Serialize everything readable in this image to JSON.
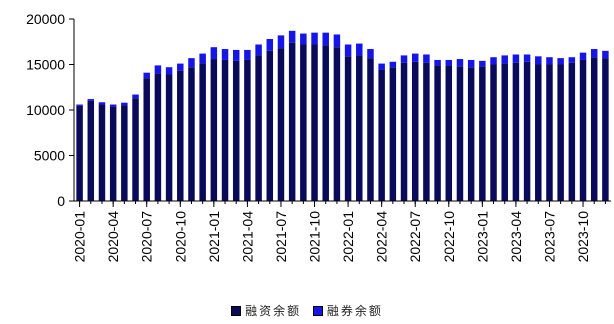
{
  "chart_data": {
    "type": "bar",
    "stacked": true,
    "ylim": [
      0,
      20000
    ],
    "yticks": [
      0,
      5000,
      10000,
      15000,
      20000
    ],
    "categories": [
      "2020-01",
      "2020-02",
      "2020-03",
      "2020-04",
      "2020-05",
      "2020-06",
      "2020-07",
      "2020-08",
      "2020-09",
      "2020-10",
      "2020-11",
      "2020-12",
      "2021-01",
      "2021-02",
      "2021-03",
      "2021-04",
      "2021-05",
      "2021-06",
      "2021-07",
      "2021-08",
      "2021-09",
      "2021-10",
      "2021-11",
      "2021-12",
      "2022-01",
      "2022-02",
      "2022-03",
      "2022-04",
      "2022-05",
      "2022-06",
      "2022-07",
      "2022-08",
      "2022-09",
      "2022-10",
      "2022-11",
      "2022-12",
      "2023-01",
      "2023-02",
      "2023-03",
      "2023-04",
      "2023-05",
      "2023-06",
      "2023-07",
      "2023-08",
      "2023-09",
      "2023-10",
      "2023-11",
      "2023-12"
    ],
    "xtick_labels": [
      "2020-01",
      "2020-04",
      "2020-07",
      "2020-10",
      "2021-01",
      "2021-04",
      "2021-07",
      "2021-10",
      "2022-01",
      "2022-04",
      "2022-07",
      "2022-10",
      "2023-01",
      "2023-04",
      "2023-07",
      "2023-10"
    ],
    "series": [
      {
        "name": "融资余额",
        "color": "#0a0a5a",
        "values": [
          10450,
          11000,
          10600,
          10400,
          10500,
          11300,
          13500,
          14000,
          13900,
          14300,
          14700,
          15100,
          15600,
          15500,
          15400,
          15500,
          16000,
          16500,
          16800,
          17400,
          17200,
          17200,
          17100,
          16900,
          15900,
          16000,
          15700,
          14400,
          14700,
          15200,
          15300,
          15200,
          14900,
          14900,
          14800,
          14700,
          14800,
          15000,
          15100,
          15200,
          15300,
          15000,
          15000,
          15000,
          15200,
          15500,
          15800,
          15700
        ]
      },
      {
        "name": "融券余额",
        "color": "#1515e8",
        "values": [
          150,
          200,
          250,
          200,
          300,
          400,
          600,
          900,
          800,
          800,
          1000,
          1100,
          1300,
          1200,
          1200,
          1100,
          1200,
          1300,
          1400,
          1300,
          1200,
          1300,
          1400,
          1400,
          1300,
          1300,
          1000,
          700,
          600,
          800,
          900,
          900,
          600,
          600,
          800,
          800,
          600,
          800,
          900,
          900,
          800,
          900,
          800,
          700,
          600,
          800,
          900,
          800
        ]
      }
    ],
    "legend_position": "bottom-center",
    "grid": false
  }
}
